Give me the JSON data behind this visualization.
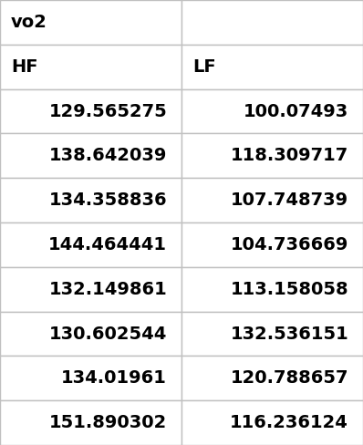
{
  "title": "vo2",
  "col_headers": [
    "HF",
    "LF"
  ],
  "hf_values": [
    "129.565275",
    "138.642039",
    "134.358836",
    "144.464441",
    "132.149861",
    "130.602544",
    "134.01961",
    "151.890302"
  ],
  "lf_values": [
    "100.07493",
    "118.309717",
    "107.748739",
    "104.736669",
    "113.158058",
    "132.536151",
    "120.788657",
    "116.236124"
  ],
  "bg_color": "#ffffff",
  "text_color": "#000000",
  "border_color": "#c0c0c0",
  "font_size": 14,
  "header_font_size": 14,
  "title_font_size": 14,
  "fig_width": 3.98,
  "fig_height": 4.88,
  "dpi": 100
}
